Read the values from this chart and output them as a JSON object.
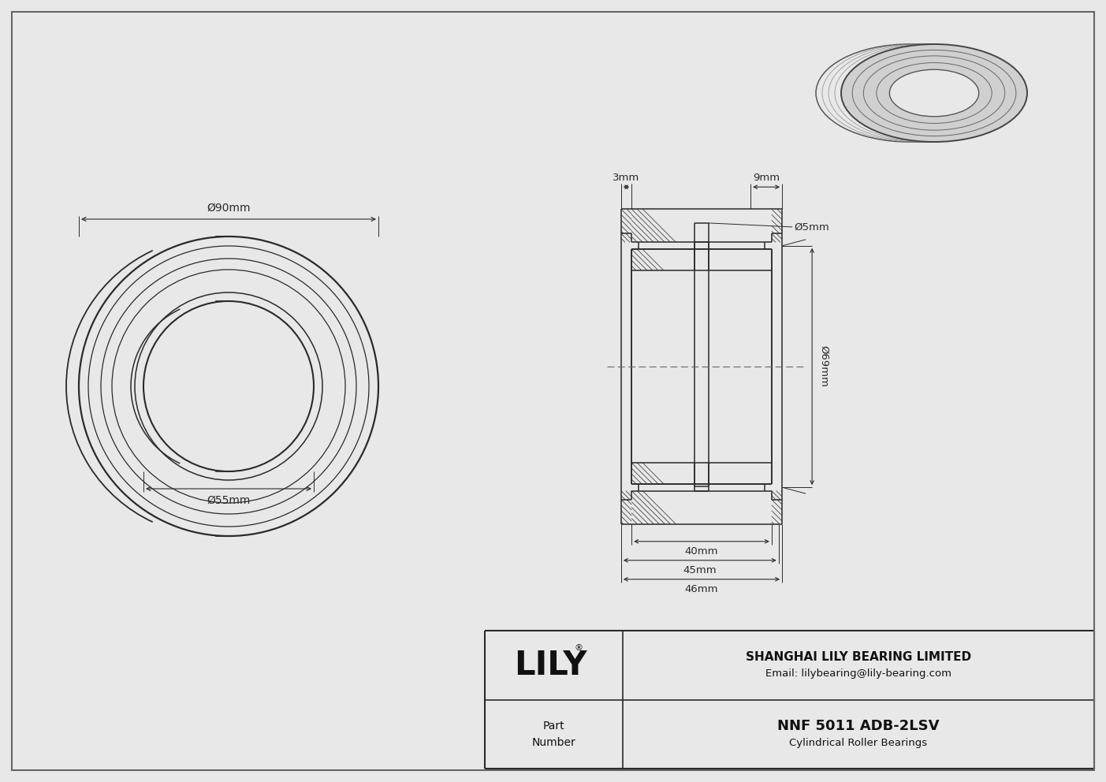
{
  "bg_color": "#e8e8e8",
  "drawing_bg": "#f5f5f5",
  "line_color": "#2a2a2a",
  "dim_color": "#2a2a2a",
  "company_name": "SHANGHAI LILY BEARING LIMITED",
  "company_email": "Email: lilybearing@lily-bearing.com",
  "part_label": "Part\nNumber",
  "part_number": "NNF 5011 ADB-2LSV",
  "part_type": "Cylindrical Roller Bearings",
  "lily_text": "LILY",
  "dim_od": "Ø90mm",
  "dim_id": "Ø55mm",
  "dim_bore": "Ø69mm",
  "dim_groove": "Ø5mm",
  "dim_3mm": "3mm",
  "dim_9mm": "9mm",
  "dim_40mm": "40mm",
  "dim_45mm": "45mm",
  "dim_46mm": "46mm"
}
